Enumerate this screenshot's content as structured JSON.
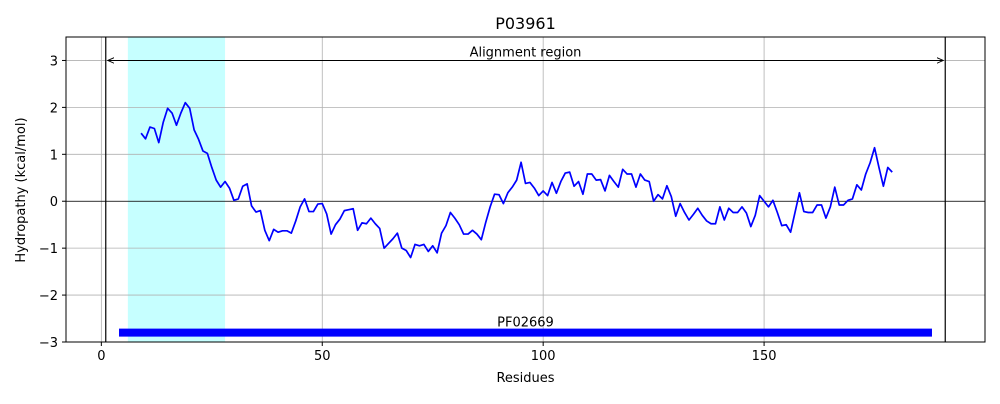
{
  "chart_data": {
    "type": "line",
    "title": "P03961",
    "xlabel": "Residues",
    "ylabel": "Hydropathy (kcal/mol)",
    "xlim": [
      -8,
      200
    ],
    "ylim": [
      -3,
      3.5
    ],
    "xticks": [
      0,
      50,
      100,
      150
    ],
    "yticks": [
      -3,
      -2,
      -1,
      0,
      1,
      2,
      3
    ],
    "grid": true,
    "colors": {
      "line": "#0000ff",
      "highlight": "#c6ffff",
      "domain_bar": "#0000ff",
      "axes": "#000000",
      "grid": "#b0b0b0"
    },
    "highlight_region": {
      "x_start": 6,
      "x_end": 28
    },
    "alignment_region": {
      "label": "Alignment region",
      "x_start": 1,
      "x_end": 191,
      "y": 3
    },
    "domain": {
      "label": "PF02669",
      "x_start": 4,
      "x_end": 188,
      "y": -2.8
    },
    "series": [
      {
        "x": [
          9,
          10,
          11,
          12,
          13,
          14,
          15,
          16,
          17,
          18,
          19,
          20,
          21,
          22,
          23,
          24,
          25,
          26,
          27,
          28,
          29,
          30,
          31,
          32,
          33,
          34,
          35,
          36,
          37,
          38,
          39,
          40,
          41,
          42,
          43,
          44,
          45,
          46,
          47,
          48,
          49,
          50,
          51,
          52,
          53,
          54,
          55,
          56,
          57,
          58,
          59,
          60,
          61,
          62,
          63,
          64,
          65,
          66,
          67,
          68,
          69,
          70,
          71,
          72,
          73,
          74,
          75,
          76,
          77,
          78,
          79,
          80,
          81,
          82,
          83,
          84,
          85,
          86,
          87,
          88,
          89,
          90,
          91,
          92,
          93,
          94,
          95,
          96,
          97,
          98,
          99,
          100,
          101,
          102,
          103,
          104,
          105,
          106,
          107,
          108,
          109,
          110,
          111,
          112,
          113,
          114,
          115,
          116,
          117,
          118,
          119,
          120,
          121,
          122,
          123,
          124,
          125,
          126,
          127,
          128,
          129,
          130,
          131,
          132,
          133,
          134,
          135,
          136,
          137,
          138,
          139,
          140,
          141,
          142,
          143,
          144,
          145,
          146,
          147,
          148,
          149,
          150,
          151,
          152,
          153,
          154,
          155,
          156,
          157,
          158,
          159,
          160,
          161,
          162,
          163,
          164,
          165,
          166,
          167,
          168,
          169,
          170,
          171,
          172,
          173,
          174,
          175,
          176,
          177,
          178,
          179
        ],
        "values": [
          1.45,
          1.33,
          1.58,
          1.55,
          1.25,
          1.68,
          1.98,
          1.88,
          1.62,
          1.88,
          2.1,
          1.98,
          1.52,
          1.32,
          1.07,
          1.02,
          0.72,
          0.45,
          0.3,
          0.42,
          0.28,
          0.02,
          0.05,
          0.32,
          0.37,
          -0.1,
          -0.23,
          -0.2,
          -0.62,
          -0.84,
          -0.6,
          -0.66,
          -0.63,
          -0.63,
          -0.68,
          -0.42,
          -0.12,
          0.05,
          -0.22,
          -0.22,
          -0.06,
          -0.05,
          -0.27,
          -0.7,
          -0.5,
          -0.38,
          -0.2,
          -0.18,
          -0.16,
          -0.62,
          -0.46,
          -0.48,
          -0.36,
          -0.48,
          -0.58,
          -1.0,
          -0.9,
          -0.8,
          -0.68,
          -1.0,
          -1.05,
          -1.2,
          -0.92,
          -0.95,
          -0.92,
          -1.07,
          -0.95,
          -1.1,
          -0.68,
          -0.52,
          -0.24,
          -0.36,
          -0.5,
          -0.7,
          -0.7,
          -0.62,
          -0.7,
          -0.82,
          -0.45,
          -0.12,
          0.15,
          0.14,
          -0.05,
          0.18,
          0.3,
          0.45,
          0.83,
          0.38,
          0.4,
          0.28,
          0.12,
          0.22,
          0.12,
          0.4,
          0.17,
          0.42,
          0.6,
          0.62,
          0.32,
          0.42,
          0.15,
          0.58,
          0.58,
          0.45,
          0.46,
          0.22,
          0.55,
          0.42,
          0.3,
          0.68,
          0.58,
          0.58,
          0.3,
          0.58,
          0.45,
          0.42,
          0.0,
          0.14,
          0.05,
          0.33,
          0.1,
          -0.32,
          -0.05,
          -0.24,
          -0.4,
          -0.28,
          -0.15,
          -0.3,
          -0.42,
          -0.48,
          -0.48,
          -0.12,
          -0.4,
          -0.15,
          -0.24,
          -0.24,
          -0.12,
          -0.25,
          -0.54,
          -0.3,
          0.12,
          0.0,
          -0.12,
          0.02,
          -0.24,
          -0.52,
          -0.5,
          -0.66,
          -0.24,
          0.18,
          -0.22,
          -0.24,
          -0.24,
          -0.08,
          -0.08,
          -0.36,
          -0.12,
          0.3,
          -0.08,
          -0.08,
          0.02,
          0.05,
          0.35,
          0.24,
          0.58,
          0.82,
          1.14,
          0.72,
          0.32,
          0.72,
          0.62
        ]
      }
    ]
  }
}
